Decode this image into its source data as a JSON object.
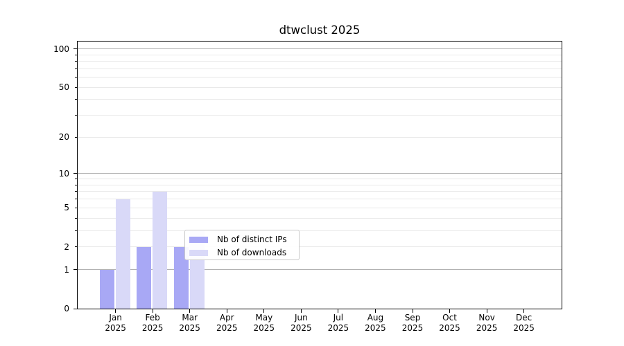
{
  "figure": {
    "title": "dtwclust 2025"
  },
  "chart_data": {
    "type": "bar",
    "title": "dtwclust 2025",
    "categories": [
      "Jan",
      "Feb",
      "Mar",
      "Apr",
      "May",
      "Jun",
      "Jul",
      "Aug",
      "Sep",
      "Oct",
      "Nov",
      "Dec"
    ],
    "year_label": "2025",
    "series": [
      {
        "name": "Nb of distinct IPs",
        "color": "#a8a8f5",
        "values": [
          1,
          2,
          2,
          0,
          0,
          0,
          0,
          0,
          0,
          0,
          0,
          0
        ]
      },
      {
        "name": "Nb of downloads",
        "color": "#d9d9f8",
        "values": [
          6,
          7,
          3,
          0,
          0,
          0,
          0,
          0,
          0,
          0,
          0,
          0
        ]
      }
    ],
    "xlabel": "",
    "ylabel": "",
    "y_axis": {
      "scale": "log1p",
      "ylim": [
        0,
        113
      ],
      "labeled_ticks": [
        0,
        1,
        2,
        5,
        10,
        20,
        50,
        100
      ],
      "major_ticks": [
        0,
        1,
        10,
        100
      ],
      "minor_ticks": [
        2,
        3,
        4,
        5,
        6,
        7,
        8,
        9,
        20,
        30,
        40,
        50,
        60,
        70,
        80,
        90
      ]
    },
    "grid": {
      "horizontal": true,
      "major_color": "#b2b2b2",
      "minor_color": "#e9e9e9"
    },
    "legend": {
      "position": "lower center"
    }
  },
  "colors": {
    "background": "#ffffff",
    "spine": "#000000",
    "text": "#000000"
  }
}
